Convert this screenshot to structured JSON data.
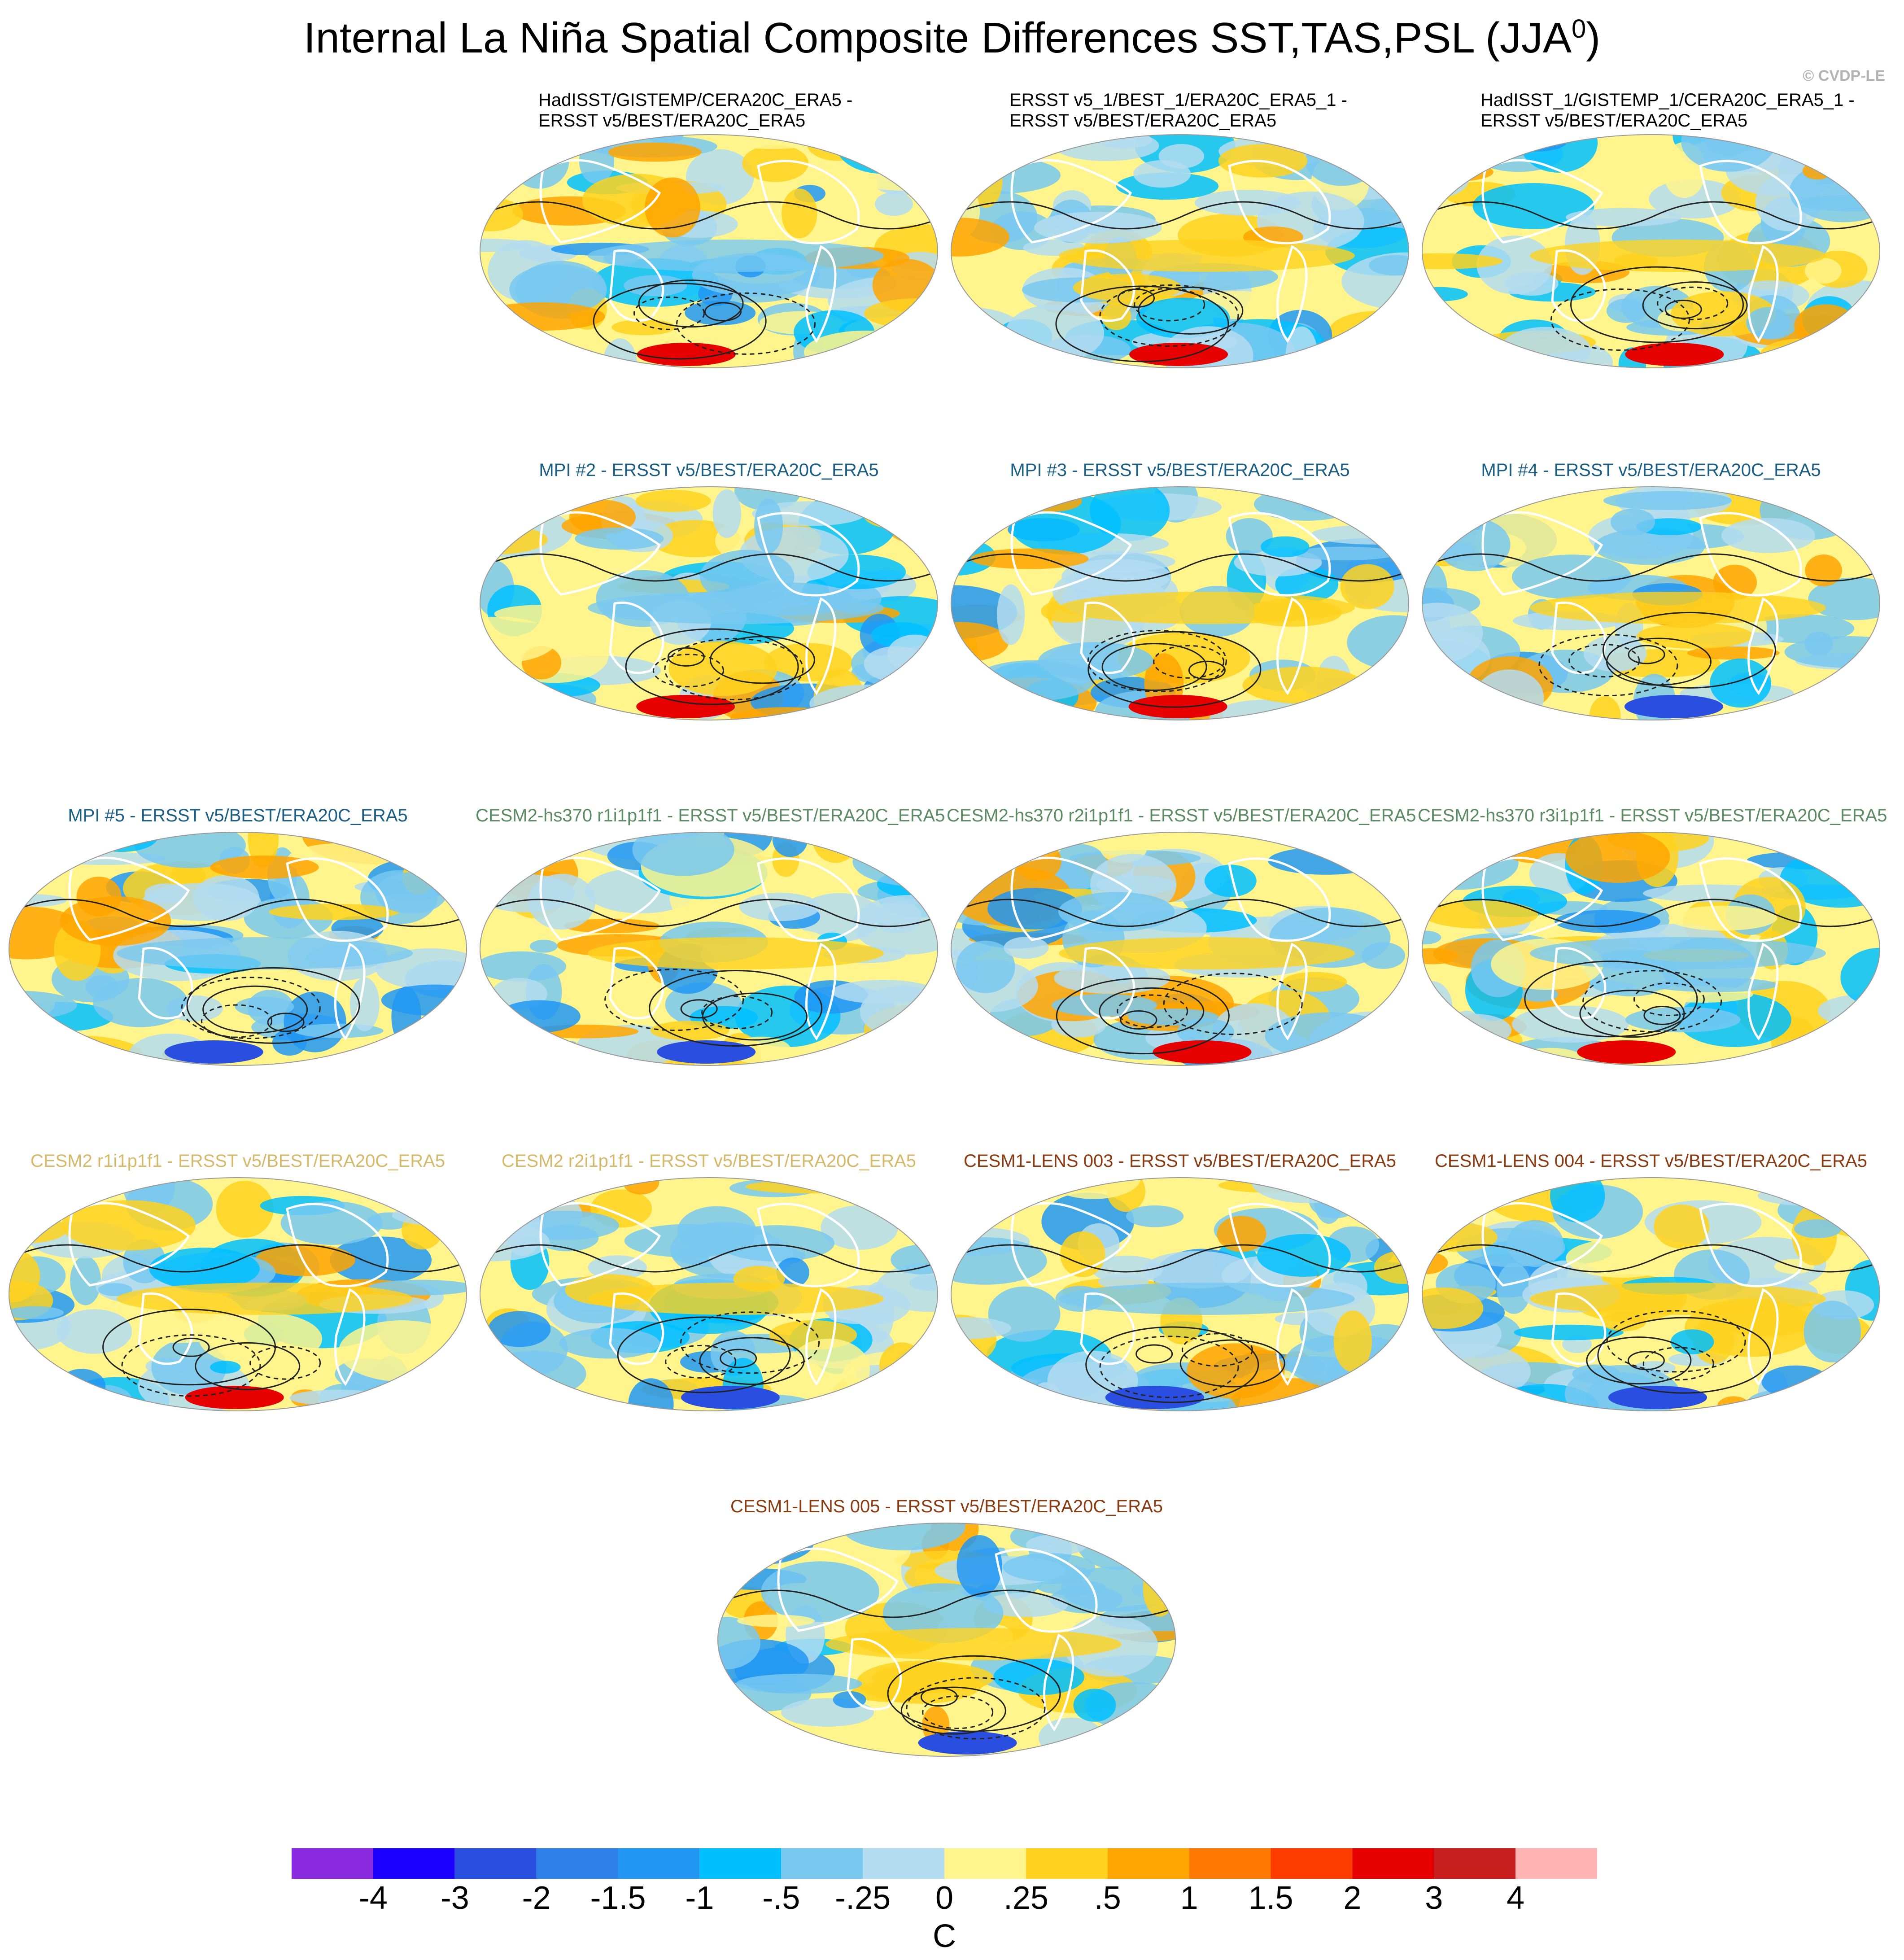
{
  "title": "Internal La Niña Spatial Composite Differences SST,TAS,PSL (JJA",
  "title_superscript": "0",
  "title_close": ")",
  "credit": "© CVDP-LE",
  "chart_data": {
    "type": "map-panels",
    "projection": "Robinson-like global maps",
    "fields": [
      "SST",
      "TAS",
      "PSL contours"
    ],
    "season": "JJA0",
    "panels": [
      {
        "lines": [
          "HadISST/GISTEMP/CERA20C_ERA5 -",
          "ERSST v5/BEST/ERA20C_ERA5"
        ],
        "color": "#000000",
        "seed": 11
      },
      {
        "lines": [
          "ERSST v5_1/BEST_1/ERA20C_ERA5_1 -",
          "ERSST v5/BEST/ERA20C_ERA5"
        ],
        "color": "#000000",
        "seed": 23
      },
      {
        "lines": [
          "HadISST_1/GISTEMP_1/CERA20C_ERA5_1 -",
          "ERSST v5/BEST/ERA20C_ERA5"
        ],
        "color": "#000000",
        "seed": 37
      },
      {
        "lines": [
          "MPI #2 - ERSST v5/BEST/ERA20C_ERA5"
        ],
        "color": "#1b5e86",
        "seed": 41
      },
      {
        "lines": [
          "MPI #3 - ERSST v5/BEST/ERA20C_ERA5"
        ],
        "color": "#1b5e86",
        "seed": 53
      },
      {
        "lines": [
          "MPI #4 - ERSST v5/BEST/ERA20C_ERA5"
        ],
        "color": "#1b5e86",
        "seed": 67
      },
      {
        "lines": [
          "MPI #5 - ERSST v5/BEST/ERA20C_ERA5"
        ],
        "color": "#1b5e86",
        "seed": 71
      },
      {
        "lines": [
          "CESM2-hs370 r1i1p1f1 - ERSST v5/BEST/ERA20C_ERA5"
        ],
        "color": "#5c8a63",
        "seed": 83
      },
      {
        "lines": [
          "CESM2-hs370 r2i1p1f1 - ERSST v5/BEST/ERA20C_ERA5"
        ],
        "color": "#5c8a63",
        "seed": 97
      },
      {
        "lines": [
          "CESM2-hs370 r3i1p1f1 - ERSST v5/BEST/ERA20C_ERA5"
        ],
        "color": "#5c8a63",
        "seed": 101
      },
      {
        "lines": [
          "CESM2 r1i1p1f1 - ERSST v5/BEST/ERA20C_ERA5"
        ],
        "color": "#d4b96a",
        "seed": 113
      },
      {
        "lines": [
          "CESM2 r2i1p1f1 - ERSST v5/BEST/ERA20C_ERA5"
        ],
        "color": "#d4b96a",
        "seed": 127
      },
      {
        "lines": [
          "CESM1-LENS 003 - ERSST v5/BEST/ERA20C_ERA5"
        ],
        "color": "#8a3a10",
        "seed": 131
      },
      {
        "lines": [
          "CESM1-LENS 004 - ERSST v5/BEST/ERA20C_ERA5"
        ],
        "color": "#8a3a10",
        "seed": 149
      },
      {
        "lines": [
          "CESM1-LENS 005 - ERSST v5/BEST/ERA20C_ERA5"
        ],
        "color": "#8a3a10",
        "seed": 157
      }
    ],
    "colorbar": {
      "colors": [
        "#8a2be2",
        "#1c00ff",
        "#2a4fe0",
        "#2f7fe8",
        "#2196f3",
        "#00bfff",
        "#78c8f0",
        "#b4dcf0",
        "#fff58c",
        "#ffd21e",
        "#ffa500",
        "#ff7800",
        "#ff3c00",
        "#e60000",
        "#c81e1e",
        "#ffb4b4"
      ],
      "tick_labels": [
        "-4",
        "-3",
        "-2",
        "-1.5",
        "-1",
        "-.5",
        "-.25",
        "0",
        ".25",
        ".5",
        "1",
        "1.5",
        "2",
        "3",
        "4"
      ],
      "units": "C"
    }
  }
}
